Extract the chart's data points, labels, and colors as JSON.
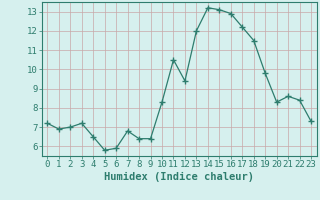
{
  "x": [
    0,
    1,
    2,
    3,
    4,
    5,
    6,
    7,
    8,
    9,
    10,
    11,
    12,
    13,
    14,
    15,
    16,
    17,
    18,
    19,
    20,
    21,
    22,
    23
  ],
  "y": [
    7.2,
    6.9,
    7.0,
    7.2,
    6.5,
    5.8,
    5.9,
    6.8,
    6.4,
    6.4,
    8.3,
    10.5,
    9.4,
    12.0,
    13.2,
    13.1,
    12.9,
    12.2,
    11.5,
    9.8,
    8.3,
    8.6,
    8.4,
    7.3
  ],
  "line_color": "#2e7d6e",
  "marker": "+",
  "marker_size": 4,
  "bg_color": "#d6f0ee",
  "grid_color": "#c8a8a8",
  "axis_color": "#2e7d6e",
  "xlabel": "Humidex (Indice chaleur)",
  "ylim": [
    5.5,
    13.5
  ],
  "xlim": [
    -0.5,
    23.5
  ],
  "yticks": [
    6,
    7,
    8,
    9,
    10,
    11,
    12,
    13
  ],
  "xticks": [
    0,
    1,
    2,
    3,
    4,
    5,
    6,
    7,
    8,
    9,
    10,
    11,
    12,
    13,
    14,
    15,
    16,
    17,
    18,
    19,
    20,
    21,
    22,
    23
  ],
  "title_fontsize": 9,
  "label_fontsize": 7.5,
  "tick_fontsize": 6.5
}
